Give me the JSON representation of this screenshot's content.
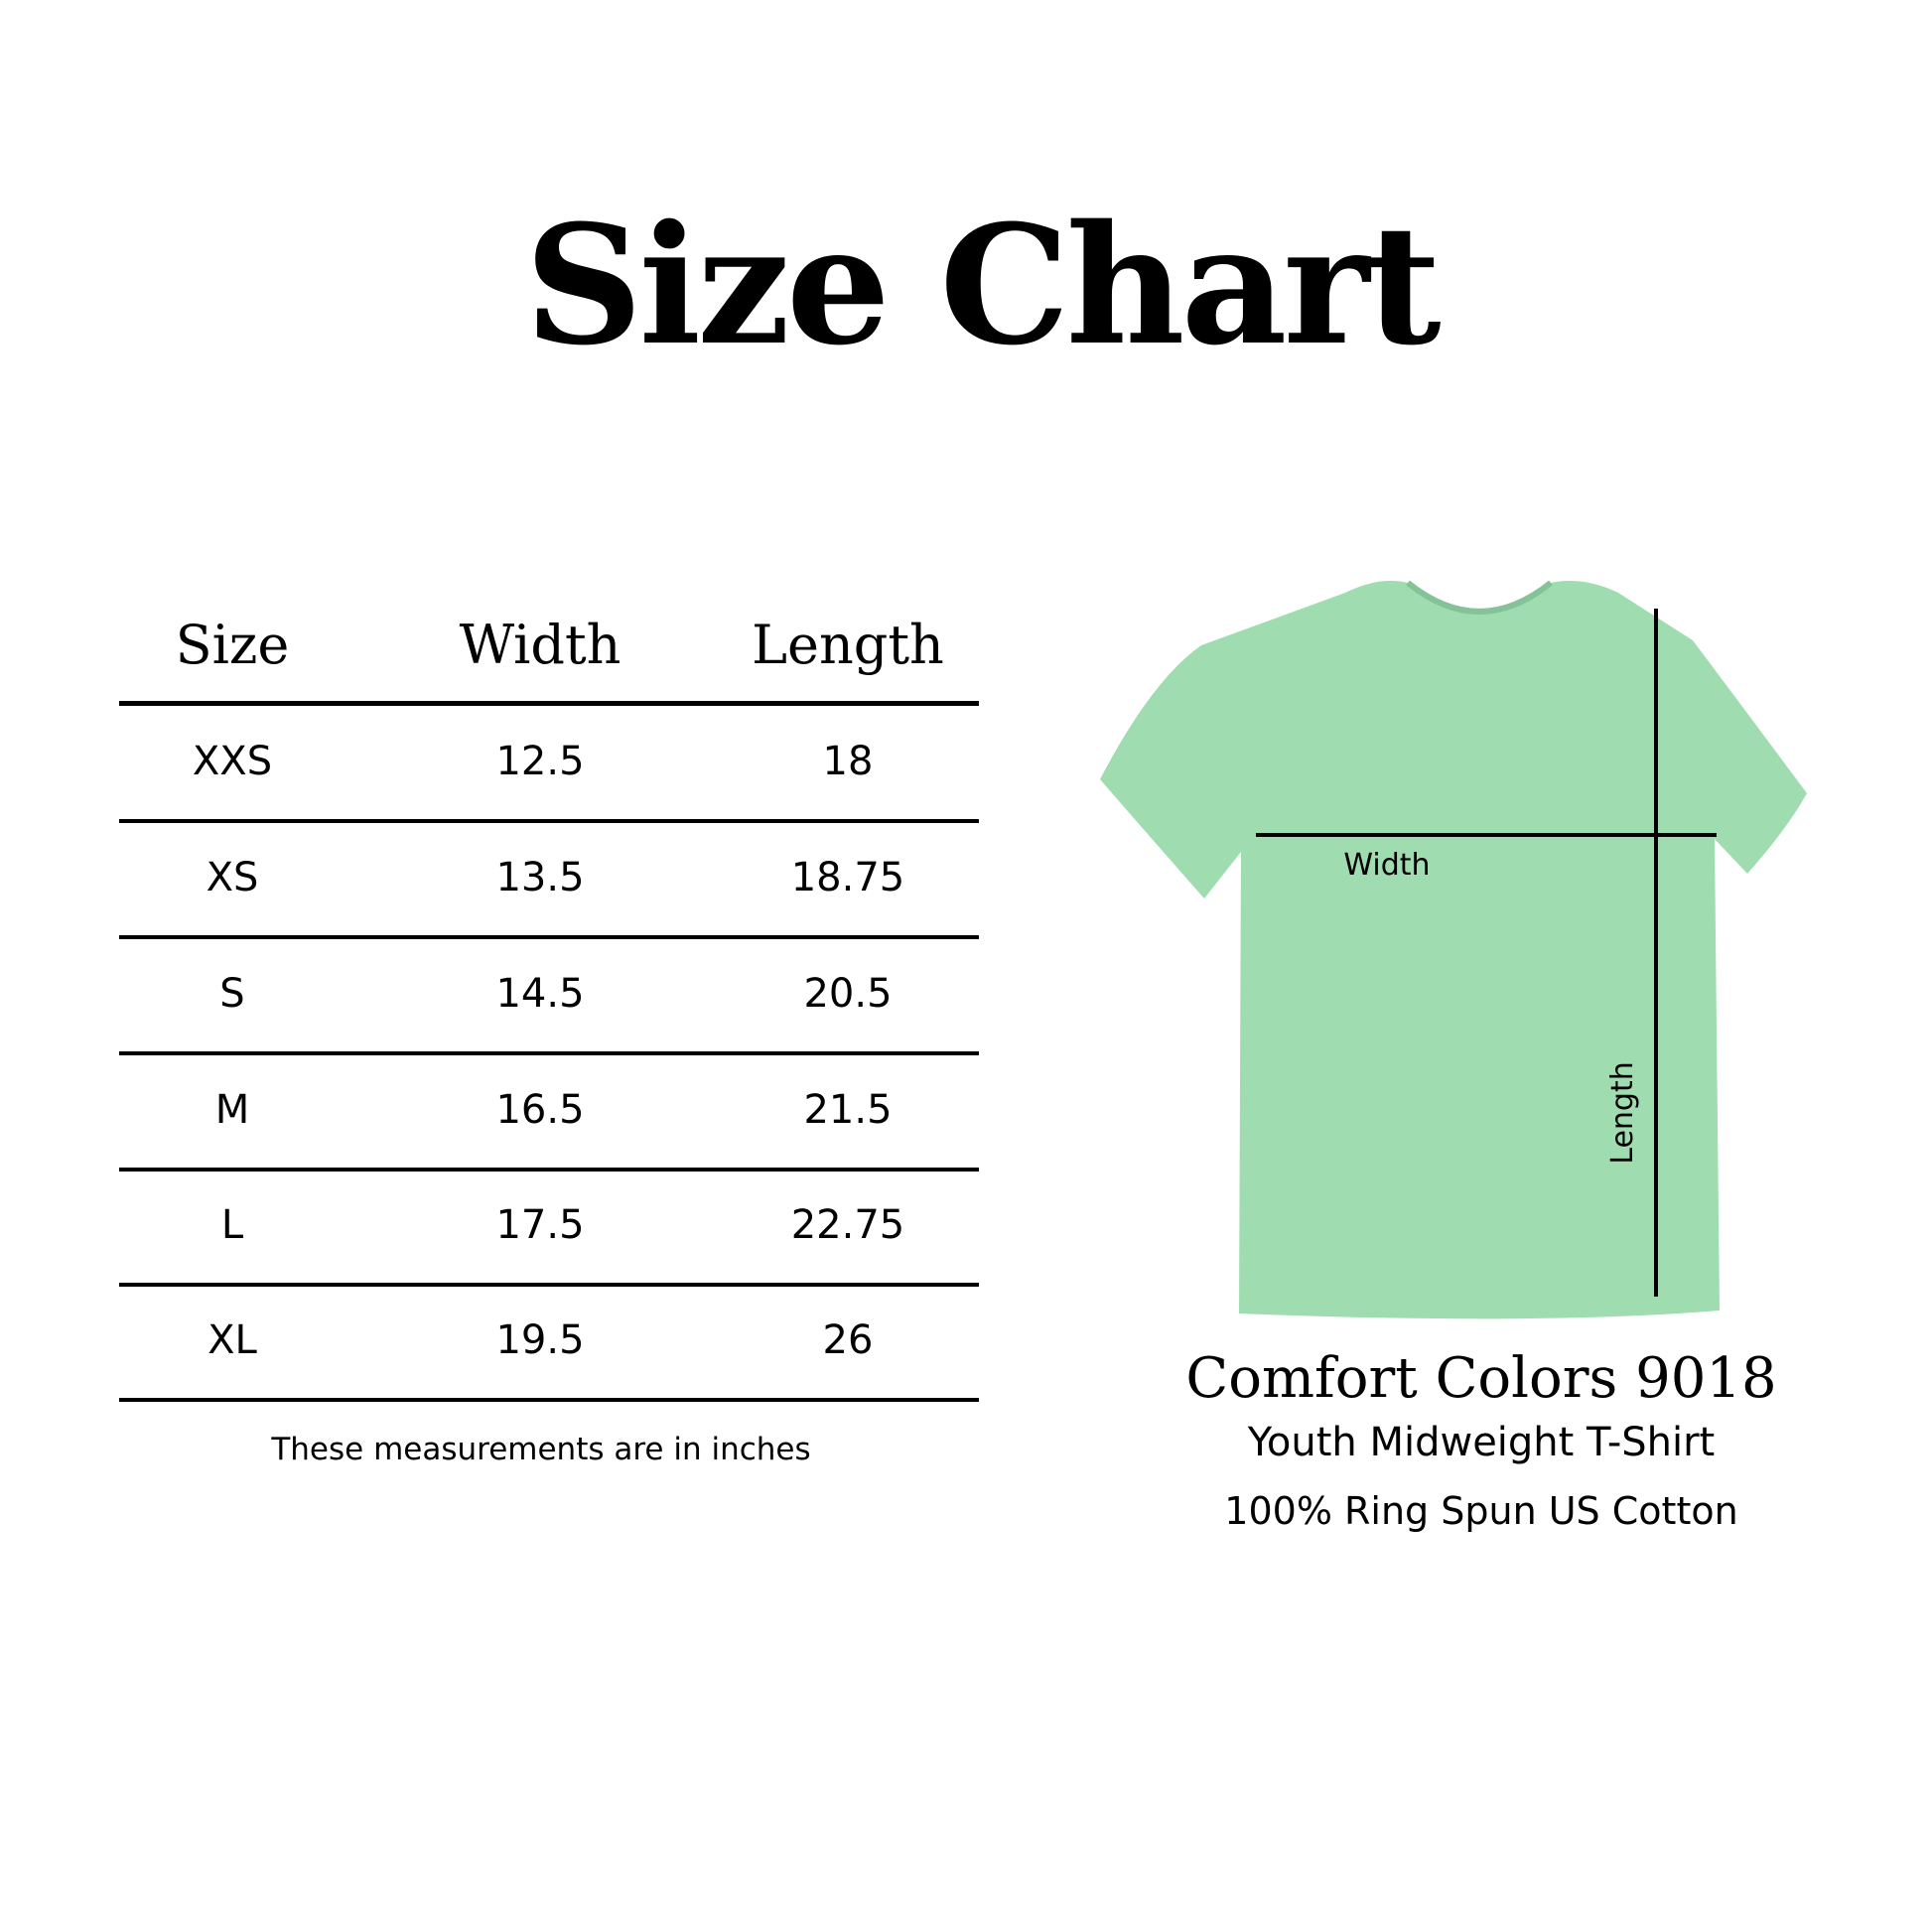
{
  "title": "Size Chart",
  "table": {
    "headers": [
      "Size",
      "Width",
      "Length"
    ],
    "rows": [
      [
        "XXS",
        "12.5",
        "18"
      ],
      [
        "XS",
        "13.5",
        "18.75"
      ],
      [
        "S",
        "14.5",
        "20.5"
      ],
      [
        "M",
        "16.5",
        "21.5"
      ],
      [
        "L",
        "17.5",
        "22.75"
      ],
      [
        "XL",
        "19.5",
        "26"
      ]
    ],
    "note": "These measurements are in inches"
  },
  "diagram": {
    "shirt_color": "#9fdcb0",
    "width_label": "Width",
    "length_label": "Length"
  },
  "product": {
    "name": "Comfort Colors 9018",
    "line1": "Youth Midweight T-Shirt",
    "line2": "100% Ring Spun US Cotton"
  }
}
